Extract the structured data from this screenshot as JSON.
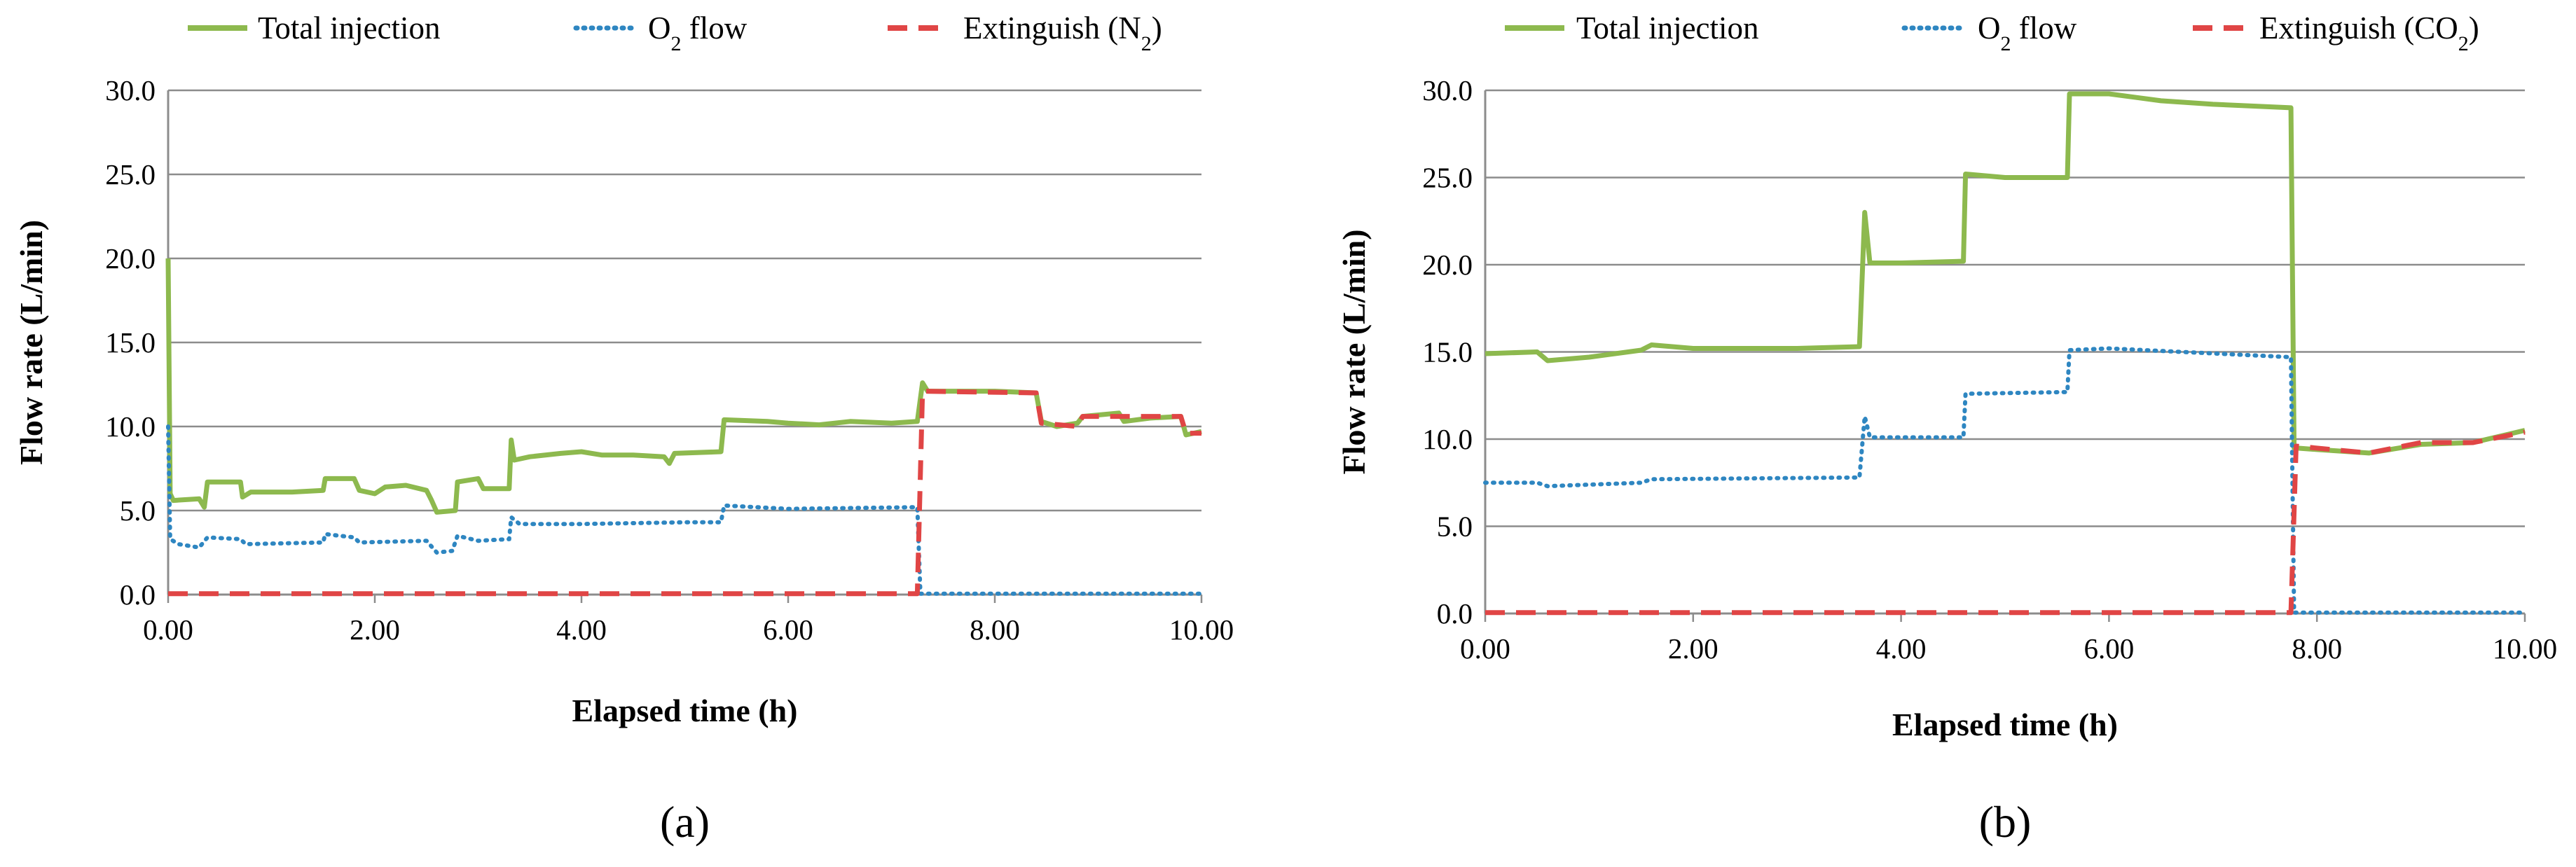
{
  "chart_data": [
    {
      "type": "line",
      "panel_label": "(a)",
      "xlabel": "Elapsed time (h)",
      "ylabel": "Flow rate (L/min)",
      "xlim": [
        0,
        10
      ],
      "ylim": [
        0,
        30
      ],
      "xticks": [
        "0.00",
        "2.00",
        "4.00",
        "6.00",
        "8.00",
        "10.00"
      ],
      "yticks": [
        "0.0",
        "5.0",
        "10.0",
        "15.0",
        "20.0",
        "25.0",
        "30.0"
      ],
      "grid": "horizontal",
      "legend": {
        "position": "top",
        "items": [
          {
            "label": "Total injection",
            "style": "solid"
          },
          {
            "label": "O",
            "sub": "2",
            "suffix": " flow",
            "style": "dotted"
          },
          {
            "label": "Extinguish (N",
            "sub": "2",
            "suffix": ")",
            "style": "dashed"
          }
        ]
      },
      "colors": {
        "total": "#8DB94E",
        "o2": "#2E86C1",
        "ext": "#E04545"
      },
      "series": [
        {
          "name": "Total injection",
          "key": "total",
          "style": "solid",
          "points": [
            [
              0,
              20
            ],
            [
              0.02,
              6
            ],
            [
              0.05,
              5.6
            ],
            [
              0.3,
              5.7
            ],
            [
              0.35,
              5.2
            ],
            [
              0.38,
              6.7
            ],
            [
              0.7,
              6.7
            ],
            [
              0.72,
              5.8
            ],
            [
              0.8,
              6.1
            ],
            [
              1.2,
              6.1
            ],
            [
              1.5,
              6.2
            ],
            [
              1.52,
              6.9
            ],
            [
              1.8,
              6.9
            ],
            [
              1.85,
              6.2
            ],
            [
              2.0,
              6.0
            ],
            [
              2.1,
              6.4
            ],
            [
              2.3,
              6.5
            ],
            [
              2.5,
              6.2
            ],
            [
              2.55,
              5.6
            ],
            [
              2.6,
              4.9
            ],
            [
              2.78,
              5.0
            ],
            [
              2.8,
              6.7
            ],
            [
              3.0,
              6.9
            ],
            [
              3.05,
              6.3
            ],
            [
              3.3,
              6.3
            ],
            [
              3.32,
              9.2
            ],
            [
              3.35,
              8.0
            ],
            [
              3.5,
              8.2
            ],
            [
              3.8,
              8.4
            ],
            [
              4.0,
              8.5
            ],
            [
              4.2,
              8.3
            ],
            [
              4.5,
              8.3
            ],
            [
              4.8,
              8.2
            ],
            [
              4.85,
              7.8
            ],
            [
              4.9,
              8.4
            ],
            [
              5.35,
              8.5
            ],
            [
              5.38,
              10.4
            ],
            [
              5.8,
              10.3
            ],
            [
              6.0,
              10.2
            ],
            [
              6.3,
              10.1
            ],
            [
              6.6,
              10.3
            ],
            [
              7.0,
              10.2
            ],
            [
              7.25,
              10.3
            ],
            [
              7.3,
              12.6
            ],
            [
              7.35,
              12.1
            ],
            [
              8.0,
              12.1
            ],
            [
              8.4,
              12.0
            ],
            [
              8.45,
              10.3
            ],
            [
              8.6,
              10.0
            ],
            [
              8.8,
              10.2
            ],
            [
              8.85,
              10.6
            ],
            [
              9.2,
              10.8
            ],
            [
              9.25,
              10.3
            ],
            [
              9.5,
              10.5
            ],
            [
              9.8,
              10.6
            ],
            [
              9.85,
              9.5
            ],
            [
              10.0,
              9.7
            ]
          ]
        },
        {
          "name": "O2 flow",
          "key": "o2",
          "style": "dotted",
          "points": [
            [
              0,
              10
            ],
            [
              0.02,
              3.3
            ],
            [
              0.1,
              3.0
            ],
            [
              0.3,
              2.8
            ],
            [
              0.38,
              3.4
            ],
            [
              0.7,
              3.3
            ],
            [
              0.75,
              3.0
            ],
            [
              1.5,
              3.1
            ],
            [
              1.52,
              3.6
            ],
            [
              1.8,
              3.4
            ],
            [
              1.85,
              3.1
            ],
            [
              2.5,
              3.2
            ],
            [
              2.6,
              2.5
            ],
            [
              2.75,
              2.6
            ],
            [
              2.8,
              3.5
            ],
            [
              3.0,
              3.2
            ],
            [
              3.3,
              3.3
            ],
            [
              3.32,
              4.6
            ],
            [
              3.4,
              4.2
            ],
            [
              4.0,
              4.2
            ],
            [
              5.0,
              4.3
            ],
            [
              5.35,
              4.3
            ],
            [
              5.38,
              5.3
            ],
            [
              6.0,
              5.1
            ],
            [
              7.25,
              5.2
            ],
            [
              7.28,
              0.05
            ],
            [
              10.0,
              0.05
            ]
          ]
        },
        {
          "name": "Extinguish (N2)",
          "key": "ext",
          "style": "dashed",
          "points": [
            [
              0,
              0.05
            ],
            [
              7.25,
              0.05
            ],
            [
              7.3,
              12.1
            ],
            [
              8.4,
              12.0
            ],
            [
              8.45,
              10.2
            ],
            [
              8.8,
              10.0
            ],
            [
              8.85,
              10.6
            ],
            [
              9.8,
              10.6
            ],
            [
              9.85,
              9.6
            ],
            [
              10.0,
              9.6
            ]
          ]
        }
      ]
    },
    {
      "type": "line",
      "panel_label": "(b)",
      "xlabel": "Elapsed time (h)",
      "ylabel": "Flow rate (L/min)",
      "xlim": [
        0,
        10
      ],
      "ylim": [
        0,
        30
      ],
      "xticks": [
        "0.00",
        "2.00",
        "4.00",
        "6.00",
        "8.00",
        "10.00"
      ],
      "yticks": [
        "0.0",
        "5.0",
        "10.0",
        "15.0",
        "20.0",
        "25.0",
        "30.0"
      ],
      "grid": "horizontal",
      "legend": {
        "position": "top",
        "items": [
          {
            "label": "Total injection",
            "style": "solid"
          },
          {
            "label": "O",
            "sub": "2",
            "suffix": " flow",
            "style": "dotted"
          },
          {
            "label": "Extinguish (CO",
            "sub": "2",
            "suffix": ")",
            "style": "dashed"
          }
        ]
      },
      "colors": {
        "total": "#8DB94E",
        "o2": "#2E86C1",
        "ext": "#E04545"
      },
      "series": [
        {
          "name": "Total injection",
          "key": "total",
          "style": "solid",
          "points": [
            [
              0,
              14.9
            ],
            [
              0.5,
              15.0
            ],
            [
              0.6,
              14.5
            ],
            [
              1.0,
              14.7
            ],
            [
              1.5,
              15.1
            ],
            [
              1.6,
              15.4
            ],
            [
              2.0,
              15.2
            ],
            [
              3.0,
              15.2
            ],
            [
              3.6,
              15.3
            ],
            [
              3.65,
              23.0
            ],
            [
              3.7,
              20.1
            ],
            [
              4.0,
              20.1
            ],
            [
              4.6,
              20.2
            ],
            [
              4.62,
              25.2
            ],
            [
              5.0,
              25.0
            ],
            [
              5.6,
              25.0
            ],
            [
              5.62,
              29.8
            ],
            [
              6.0,
              29.8
            ],
            [
              6.5,
              29.4
            ],
            [
              7.0,
              29.2
            ],
            [
              7.75,
              29.0
            ],
            [
              7.78,
              9.5
            ],
            [
              8.0,
              9.4
            ],
            [
              8.5,
              9.2
            ],
            [
              9.0,
              9.7
            ],
            [
              9.5,
              9.8
            ],
            [
              10.0,
              10.5
            ]
          ]
        },
        {
          "name": "O2 flow",
          "key": "o2",
          "style": "dotted",
          "points": [
            [
              0,
              7.5
            ],
            [
              0.5,
              7.5
            ],
            [
              0.6,
              7.3
            ],
            [
              1.5,
              7.5
            ],
            [
              1.6,
              7.7
            ],
            [
              3.6,
              7.8
            ],
            [
              3.65,
              11.3
            ],
            [
              3.7,
              10.1
            ],
            [
              4.6,
              10.1
            ],
            [
              4.62,
              12.6
            ],
            [
              5.6,
              12.7
            ],
            [
              5.62,
              15.1
            ],
            [
              6.0,
              15.2
            ],
            [
              7.75,
              14.7
            ],
            [
              7.78,
              0.05
            ],
            [
              10.0,
              0.05
            ]
          ]
        },
        {
          "name": "Extinguish (CO2)",
          "key": "ext",
          "style": "dashed",
          "points": [
            [
              0,
              0.05
            ],
            [
              7.75,
              0.05
            ],
            [
              7.8,
              9.6
            ],
            [
              8.5,
              9.2
            ],
            [
              9.0,
              9.8
            ],
            [
              9.5,
              9.8
            ],
            [
              10.0,
              10.4
            ]
          ]
        }
      ]
    }
  ]
}
